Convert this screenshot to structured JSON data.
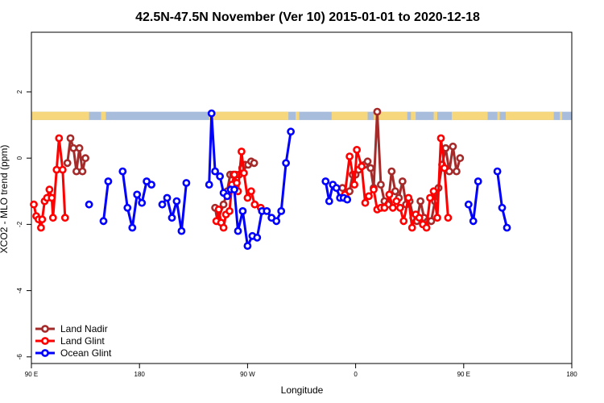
{
  "chart_data": {
    "type": "line",
    "title": "42.5N-47.5N November (Ver 10)   2015-01-01 to 2020-12-18",
    "xlabel": "Longitude",
    "ylabel": "XCO2 - MLO trend (ppm)",
    "xlim": [
      90,
      540
    ],
    "ylim": [
      -6.2,
      3.8
    ],
    "x_ticks": [
      {
        "value": 90,
        "label": "90 E"
      },
      {
        "value": 180,
        "label": "180"
      },
      {
        "value": 270,
        "label": "90 W"
      },
      {
        "value": 360,
        "label": "0"
      },
      {
        "value": 450,
        "label": "90 E"
      },
      {
        "value": 540,
        "label": "180"
      }
    ],
    "y_ticks": [
      {
        "value": 2,
        "label": "2"
      },
      {
        "value": 0,
        "label": "0"
      },
      {
        "value": -2,
        "label": "-2"
      },
      {
        "value": -4,
        "label": "-4"
      },
      {
        "value": -6,
        "label": "-6"
      }
    ],
    "land_ocean_band": {
      "y_range": [
        1.15,
        1.4
      ],
      "land_color": "#f6d77b",
      "ocean_color": "#a8bcdb",
      "land_segments": [
        [
          90,
          138
        ],
        [
          148,
          152
        ],
        [
          238,
          304
        ],
        [
          310,
          313
        ],
        [
          340,
          370
        ],
        [
          375,
          403
        ],
        [
          406,
          410
        ],
        [
          425,
          428
        ],
        [
          440,
          470
        ],
        [
          478,
          480
        ],
        [
          485,
          525
        ],
        [
          530,
          532
        ]
      ]
    },
    "legend": {
      "position": "bottom-left"
    },
    "series": [
      {
        "name": "Land Nadir",
        "color": "#a52a2a",
        "segments": [
          [
            [
              120,
              -0.15
            ],
            [
              122.5,
              0.6
            ],
            [
              125,
              0.3
            ],
            [
              127.5,
              -0.4
            ],
            [
              130,
              0.3
            ],
            [
              132.5,
              -0.4
            ],
            [
              135,
              0.0
            ]
          ],
          [
            [
              243,
              -1.5
            ],
            [
              245,
              -1.9
            ],
            [
              250,
              -1.4
            ],
            [
              253,
              -1.0
            ],
            [
              255.5,
              -0.5
            ],
            [
              258,
              -0.5
            ],
            [
              260,
              -0.5
            ],
            [
              263,
              -0.5
            ],
            [
              265.5,
              -0.3
            ],
            [
              268,
              -0.2
            ],
            [
              270.5,
              -0.2
            ],
            [
              273,
              -0.1
            ],
            [
              275.5,
              -0.15
            ]
          ],
          [
            [
              349,
              -0.9
            ],
            [
              352,
              -1.2
            ],
            [
              355,
              -1.0
            ],
            [
              357.5,
              -0.5
            ],
            [
              360,
              -0.5
            ],
            [
              362.5,
              -0.35
            ],
            [
              365,
              -0.25
            ],
            [
              367.5,
              -0.2
            ],
            [
              370,
              -0.1
            ],
            [
              372.5,
              -0.3
            ],
            [
              375,
              -0.9
            ],
            [
              378,
              1.4
            ],
            [
              381,
              -0.8
            ],
            [
              384,
              -1.3
            ],
            [
              387,
              -1.4
            ],
            [
              390,
              -0.4
            ],
            [
              393,
              -1.0
            ],
            [
              396,
              -1.2
            ],
            [
              399,
              -0.7
            ],
            [
              402,
              -1.4
            ],
            [
              405,
              -1.3
            ],
            [
              408,
              -1.8
            ],
            [
              411,
              -1.9
            ],
            [
              414,
              -1.3
            ],
            [
              417,
              -1.8
            ],
            [
              420,
              -1.9
            ],
            [
              423,
              -1.9
            ],
            [
              426,
              -1.3
            ],
            [
              429,
              -0.9
            ],
            [
              432,
              -0.2
            ],
            [
              435,
              0.3
            ],
            [
              438,
              -0.4
            ],
            [
              441,
              0.35
            ],
            [
              444,
              -0.4
            ],
            [
              447,
              0.0
            ]
          ]
        ]
      },
      {
        "name": "Land Glint",
        "color": "#ff0000",
        "segments": [
          [
            [
              92,
              -1.4
            ],
            [
              94,
              -1.75
            ],
            [
              96,
              -1.85
            ],
            [
              98,
              -2.1
            ],
            [
              99,
              -1.85
            ],
            [
              101,
              -1.3
            ],
            [
              103,
              -1.2
            ],
            [
              105,
              -0.95
            ],
            [
              107,
              -1.2
            ],
            [
              108,
              -1.8
            ],
            [
              111,
              -0.35
            ],
            [
              113,
              0.6
            ],
            [
              116,
              -0.35
            ],
            [
              118,
              -1.8
            ]
          ],
          [
            [
              244,
              -1.9
            ],
            [
              246,
              -1.55
            ],
            [
              248,
              -1.95
            ],
            [
              250,
              -2.1
            ],
            [
              252,
              -1.7
            ],
            [
              255,
              -1.6
            ],
            [
              257,
              -0.8
            ],
            [
              259,
              -0.5
            ],
            [
              261,
              -0.75
            ],
            [
              262,
              -1.0
            ],
            [
              265,
              0.2
            ],
            [
              267,
              -0.45
            ],
            [
              270,
              -1.2
            ],
            [
              273,
              -1.0
            ],
            [
              276,
              -1.4
            ],
            [
              281,
              -1.5
            ]
          ],
          [
            [
              351,
              -1.1
            ],
            [
              355,
              0.05
            ],
            [
              359,
              -0.8
            ],
            [
              361,
              0.25
            ],
            [
              365,
              -0.25
            ],
            [
              368,
              -1.35
            ],
            [
              371,
              -1.15
            ],
            [
              375,
              -0.95
            ],
            [
              378,
              -1.55
            ],
            [
              381,
              -1.5
            ],
            [
              384,
              -1.5
            ],
            [
              388,
              -1.1
            ],
            [
              391,
              -1.5
            ],
            [
              394,
              -1.3
            ],
            [
              397,
              -1.5
            ],
            [
              400,
              -1.9
            ],
            [
              404,
              -1.2
            ],
            [
              407,
              -2.1
            ],
            [
              410,
              -1.7
            ],
            [
              413,
              -1.8
            ],
            [
              416,
              -2.0
            ],
            [
              419,
              -2.1
            ],
            [
              422,
              -1.2
            ],
            [
              425,
              -1.0
            ],
            [
              428,
              -1.8
            ],
            [
              431,
              0.6
            ],
            [
              434,
              -0.3
            ],
            [
              437,
              -1.8
            ]
          ]
        ]
      },
      {
        "name": "Ocean Glint",
        "color": "#0000ff",
        "segments": [
          [
            [
              138,
              -1.4
            ]
          ],
          [
            [
              150,
              -1.9
            ],
            [
              154,
              -0.7
            ]
          ],
          [
            [
              166,
              -0.4
            ],
            [
              170,
              -1.5
            ],
            [
              174,
              -2.1
            ],
            [
              178,
              -1.1
            ],
            [
              182,
              -1.35
            ],
            [
              186,
              -0.7
            ],
            [
              190,
              -0.8
            ]
          ],
          [
            [
              199,
              -1.4
            ],
            [
              203,
              -1.2
            ],
            [
              207,
              -1.8
            ],
            [
              211,
              -1.3
            ],
            [
              215,
              -2.2
            ],
            [
              219,
              -0.75
            ]
          ],
          [
            [
              238,
              -0.8
            ],
            [
              240,
              1.35
            ],
            [
              243,
              -0.4
            ],
            [
              247,
              -0.55
            ],
            [
              250,
              -1.05
            ],
            [
              253,
              -1.15
            ],
            [
              256,
              -0.95
            ],
            [
              259,
              -0.95
            ],
            [
              262,
              -2.2
            ],
            [
              266,
              -1.6
            ],
            [
              270,
              -2.65
            ],
            [
              274,
              -2.35
            ],
            [
              278,
              -2.4
            ],
            [
              282,
              -1.6
            ],
            [
              286,
              -1.6
            ],
            [
              290,
              -1.8
            ],
            [
              294,
              -1.9
            ],
            [
              298,
              -1.6
            ],
            [
              302,
              -0.15
            ],
            [
              306,
              0.8
            ]
          ],
          [
            [
              335,
              -0.7
            ],
            [
              338,
              -1.3
            ],
            [
              341,
              -0.8
            ],
            [
              344,
              -0.9
            ],
            [
              347,
              -1.2
            ],
            [
              350,
              -1.2
            ],
            [
              353,
              -1.25
            ]
          ],
          [
            [
              478,
              -0.4
            ],
            [
              482,
              -1.5
            ],
            [
              486,
              -2.1
            ]
          ],
          [
            [
              454,
              -1.4
            ],
            [
              458,
              -1.9
            ],
            [
              462,
              -0.7
            ]
          ]
        ]
      }
    ]
  }
}
